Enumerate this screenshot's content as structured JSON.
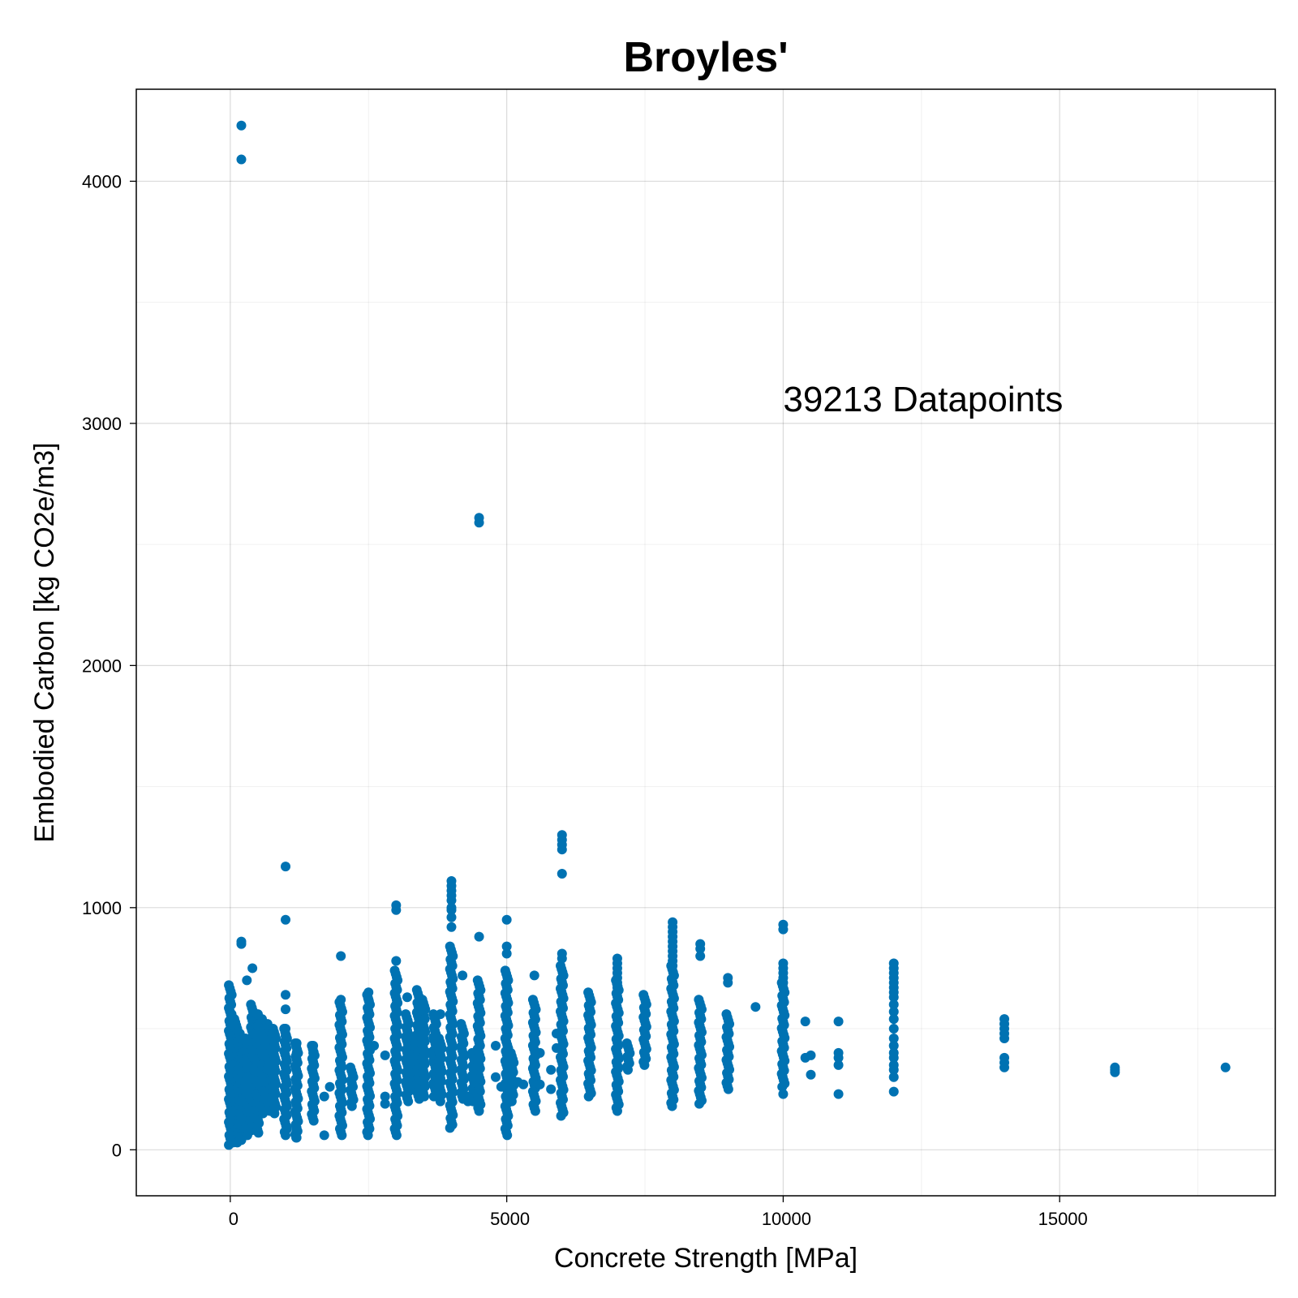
{
  "chart_data": {
    "type": "scatter",
    "title": "Broyles'",
    "xlabel": "Concrete Strength [MPa]",
    "ylabel": "Embodied Carbon [kg CO2e/m3]",
    "xlim": [
      -1700,
      18900
    ],
    "ylim": [
      -190,
      4380
    ],
    "xticks": [
      0,
      5000,
      10000,
      15000
    ],
    "xtick_labels": [
      "0",
      "5000",
      "10000",
      "15000"
    ],
    "yticks": [
      0,
      1000,
      2000,
      3000,
      4000
    ],
    "ytick_labels": [
      "0",
      "1000",
      "2000",
      "3000",
      "4000"
    ],
    "x_minor_ticks": [
      2500,
      7500,
      12500,
      17500
    ],
    "y_minor_ticks": [
      500,
      1500,
      2500,
      3500
    ],
    "grid": true,
    "annotation": "39213 Datapoints",
    "annotation_anchor": [
      10000,
      3050
    ],
    "marker_color": "#0072b2",
    "series": [
      {
        "values": [
          [
            200,
            4230
          ],
          [
            200,
            4090
          ],
          [
            4500,
            2610
          ],
          [
            4500,
            2590
          ],
          [
            1000,
            1170
          ],
          [
            1000,
            950
          ],
          [
            4000,
            1110
          ],
          [
            4000,
            1090
          ],
          [
            4000,
            1070
          ],
          [
            4000,
            1050
          ],
          [
            4000,
            1030
          ],
          [
            4000,
            1000
          ],
          [
            4000,
            990
          ],
          [
            4000,
            960
          ],
          [
            4000,
            920
          ],
          [
            3000,
            1010
          ],
          [
            3000,
            990
          ],
          [
            4500,
            880
          ],
          [
            5000,
            950
          ],
          [
            5000,
            840
          ],
          [
            5000,
            810
          ],
          [
            6000,
            1300
          ],
          [
            6000,
            1280
          ],
          [
            6000,
            1260
          ],
          [
            6000,
            1240
          ],
          [
            6000,
            1140
          ],
          [
            6000,
            810
          ],
          [
            6000,
            790
          ],
          [
            200,
            860
          ],
          [
            200,
            850
          ],
          [
            400,
            750
          ],
          [
            300,
            700
          ],
          [
            2000,
            800
          ],
          [
            3000,
            780
          ],
          [
            8000,
            940
          ],
          [
            8000,
            920
          ],
          [
            8000,
            900
          ],
          [
            8000,
            880
          ],
          [
            8000,
            860
          ],
          [
            8000,
            840
          ],
          [
            8000,
            820
          ],
          [
            8000,
            800
          ],
          [
            8000,
            780
          ],
          [
            8000,
            760
          ],
          [
            8500,
            850
          ],
          [
            8500,
            830
          ],
          [
            8500,
            800
          ],
          [
            10000,
            930
          ],
          [
            10000,
            910
          ],
          [
            10000,
            770
          ],
          [
            10000,
            750
          ],
          [
            10000,
            730
          ],
          [
            10000,
            710
          ],
          [
            10000,
            690
          ],
          [
            7000,
            790
          ],
          [
            7000,
            770
          ],
          [
            7000,
            750
          ],
          [
            7000,
            730
          ],
          [
            7000,
            710
          ],
          [
            7000,
            690
          ],
          [
            7000,
            670
          ],
          [
            7000,
            650
          ],
          [
            12000,
            770
          ],
          [
            12000,
            750
          ],
          [
            12000,
            730
          ],
          [
            12000,
            710
          ],
          [
            12000,
            690
          ],
          [
            12000,
            670
          ],
          [
            12000,
            650
          ],
          [
            12000,
            630
          ],
          [
            12000,
            600
          ],
          [
            12000,
            570
          ],
          [
            12000,
            540
          ],
          [
            12000,
            500
          ],
          [
            12000,
            460
          ],
          [
            12000,
            430
          ],
          [
            12000,
            400
          ],
          [
            12000,
            380
          ],
          [
            12000,
            350
          ],
          [
            12000,
            330
          ],
          [
            12000,
            300
          ],
          [
            12000,
            240
          ],
          [
            14000,
            540
          ],
          [
            14000,
            520
          ],
          [
            14000,
            500
          ],
          [
            14000,
            480
          ],
          [
            14000,
            460
          ],
          [
            14000,
            380
          ],
          [
            14000,
            360
          ],
          [
            14000,
            340
          ],
          [
            16000,
            340
          ],
          [
            16000,
            330
          ],
          [
            16000,
            320
          ],
          [
            18000,
            340
          ],
          [
            9500,
            590
          ],
          [
            9000,
            710
          ],
          [
            9000,
            690
          ],
          [
            10400,
            530
          ],
          [
            11000,
            530
          ],
          [
            10500,
            390
          ],
          [
            10400,
            380
          ],
          [
            10500,
            310
          ],
          [
            11000,
            400
          ],
          [
            11000,
            380
          ],
          [
            11000,
            350
          ],
          [
            11000,
            230
          ],
          [
            10000,
            230
          ],
          [
            5500,
            720
          ],
          [
            4200,
            720
          ],
          [
            4800,
            430
          ],
          [
            4200,
            450
          ],
          [
            3200,
            630
          ],
          [
            3000,
            600
          ],
          [
            2500,
            650
          ],
          [
            2500,
            620
          ],
          [
            2000,
            620
          ],
          [
            1000,
            640
          ],
          [
            1000,
            580
          ],
          [
            1000,
            500
          ],
          [
            1000,
            470
          ],
          [
            1200,
            440
          ],
          [
            1200,
            400
          ],
          [
            1500,
            430
          ],
          [
            1500,
            400
          ],
          [
            1800,
            260
          ],
          [
            1700,
            220
          ],
          [
            1700,
            60
          ],
          [
            1200,
            80
          ],
          [
            1200,
            50
          ],
          [
            3500,
            280
          ],
          [
            3600,
            400
          ],
          [
            3700,
            470
          ],
          [
            3800,
            560
          ],
          [
            5200,
            280
          ],
          [
            5300,
            270
          ],
          [
            5600,
            400
          ],
          [
            5800,
            330
          ],
          [
            5600,
            270
          ],
          [
            5800,
            250
          ],
          [
            5900,
            480
          ],
          [
            5900,
            420
          ],
          [
            5500,
            440
          ],
          [
            5500,
            350
          ],
          [
            4300,
            220
          ],
          [
            4300,
            200
          ],
          [
            4800,
            300
          ],
          [
            4900,
            260
          ],
          [
            2600,
            430
          ],
          [
            2800,
            390
          ],
          [
            2800,
            220
          ],
          [
            2800,
            190
          ],
          [
            500,
            560
          ],
          [
            500,
            510
          ],
          [
            500,
            460
          ],
          [
            400,
            410
          ],
          [
            800,
            430
          ],
          [
            800,
            380
          ],
          [
            700,
            330
          ],
          [
            600,
            280
          ],
          [
            600,
            240
          ],
          [
            700,
            200
          ],
          [
            800,
            170
          ],
          [
            300,
            350
          ],
          [
            300,
            300
          ],
          [
            250,
            250
          ],
          [
            200,
            200
          ]
        ]
      }
    ],
    "strip_columns": [
      {
        "x": 0,
        "ymin": 20,
        "ymax": 680
      },
      {
        "x": 50,
        "ymin": 30,
        "ymax": 560
      },
      {
        "x": 100,
        "ymin": 30,
        "ymax": 540
      },
      {
        "x": 150,
        "ymin": 40,
        "ymax": 500
      },
      {
        "x": 200,
        "ymin": 40,
        "ymax": 480
      },
      {
        "x": 300,
        "ymin": 60,
        "ymax": 460
      },
      {
        "x": 400,
        "ymin": 80,
        "ymax": 600
      },
      {
        "x": 500,
        "ymin": 70,
        "ymax": 560
      },
      {
        "x": 600,
        "ymin": 150,
        "ymax": 540
      },
      {
        "x": 700,
        "ymin": 160,
        "ymax": 520
      },
      {
        "x": 800,
        "ymin": 150,
        "ymax": 500
      },
      {
        "x": 1000,
        "ymin": 60,
        "ymax": 500
      },
      {
        "x": 1200,
        "ymin": 50,
        "ymax": 440
      },
      {
        "x": 1500,
        "ymin": 120,
        "ymax": 430
      },
      {
        "x": 2000,
        "ymin": 60,
        "ymax": 610
      },
      {
        "x": 2200,
        "ymin": 180,
        "ymax": 340
      },
      {
        "x": 2500,
        "ymin": 60,
        "ymax": 640
      },
      {
        "x": 3000,
        "ymin": 60,
        "ymax": 740
      },
      {
        "x": 3200,
        "ymin": 200,
        "ymax": 560
      },
      {
        "x": 3300,
        "ymin": 250,
        "ymax": 460
      },
      {
        "x": 3400,
        "ymin": 210,
        "ymax": 660
      },
      {
        "x": 3500,
        "ymin": 220,
        "ymax": 620
      },
      {
        "x": 3700,
        "ymin": 220,
        "ymax": 560
      },
      {
        "x": 3800,
        "ymin": 200,
        "ymax": 460
      },
      {
        "x": 4000,
        "ymin": 90,
        "ymax": 840
      },
      {
        "x": 4200,
        "ymin": 210,
        "ymax": 520
      },
      {
        "x": 4400,
        "ymin": 200,
        "ymax": 400
      },
      {
        "x": 4500,
        "ymin": 160,
        "ymax": 700
      },
      {
        "x": 5000,
        "ymin": 60,
        "ymax": 740
      },
      {
        "x": 5100,
        "ymin": 200,
        "ymax": 400
      },
      {
        "x": 5500,
        "ymin": 160,
        "ymax": 620
      },
      {
        "x": 6000,
        "ymin": 140,
        "ymax": 760
      },
      {
        "x": 6500,
        "ymin": 220,
        "ymax": 650
      },
      {
        "x": 7000,
        "ymin": 160,
        "ymax": 700
      },
      {
        "x": 7200,
        "ymin": 330,
        "ymax": 440
      },
      {
        "x": 7500,
        "ymin": 350,
        "ymax": 640
      },
      {
        "x": 8000,
        "ymin": 180,
        "ymax": 760
      },
      {
        "x": 8500,
        "ymin": 190,
        "ymax": 620
      },
      {
        "x": 9000,
        "ymin": 250,
        "ymax": 560
      },
      {
        "x": 10000,
        "ymin": 260,
        "ymax": 690
      }
    ]
  }
}
